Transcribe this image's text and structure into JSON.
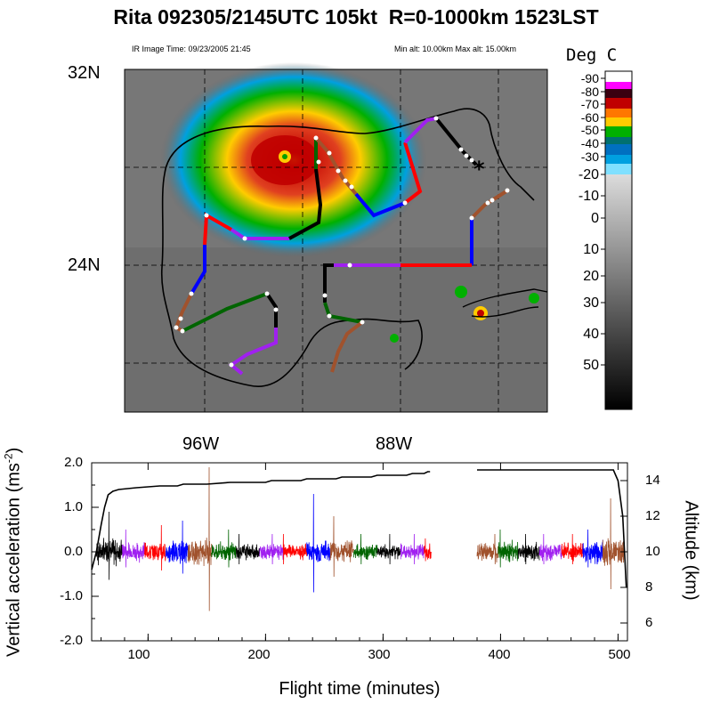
{
  "header": {
    "title": "Rita 092305/2145UTC 105kt  R=0-1000km 1523LST",
    "ir_time": "IR Image Time: 09/23/2005 21:45",
    "alt_range": "Min alt: 10.00km  Max alt: 15.00km"
  },
  "map": {
    "lat_labels": [
      "32N",
      "24N"
    ],
    "lon_labels": [
      "96W",
      "88W"
    ],
    "colorbar_title": "Deg C",
    "colorbar_ticks": [
      "-90",
      "-80",
      "-70",
      "-60",
      "-50",
      "-40",
      "-30",
      "-20",
      "-10",
      "0",
      "10",
      "20",
      "30",
      "40",
      "50"
    ],
    "colorbar_colors": {
      "-90": "#ff00ff",
      "-80": "#3a0010",
      "-70": "#c00000",
      "-60": "#ffcc00",
      "-50": "#00b000",
      "-40": "#0070c0",
      "-30": "#40e0ff"
    },
    "storm_marker": "*"
  },
  "chart_data": {
    "type": "line",
    "xlabel": "Flight time (minutes)",
    "ylabel_left": "Vertical acceleration (ms^-2)",
    "ylabel_right": "Altitude (km)",
    "xlim": [
      52,
      508
    ],
    "ylim_left": [
      -2.0,
      2.0
    ],
    "ylim_right": [
      5,
      15
    ],
    "x_ticks": [
      100,
      200,
      300,
      400,
      500
    ],
    "y_ticks_left": [
      "2.0",
      "1.0",
      "0.0",
      "-1.0",
      "-2.0"
    ],
    "y_ticks_right": [
      "6",
      "8",
      "10",
      "12",
      "14"
    ],
    "altitude_series": {
      "name": "Altitude",
      "x": [
        52,
        56,
        60,
        63,
        66,
        70,
        75,
        90,
        110,
        125,
        130,
        140,
        150,
        170,
        200,
        205,
        230,
        235,
        260,
        265,
        290,
        295,
        320,
        325,
        335,
        338,
        340,
        380,
        400,
        420,
        440,
        460,
        480,
        496,
        500,
        504,
        507
      ],
      "y": [
        9.0,
        10.0,
        11.5,
        12.5,
        13.2,
        13.4,
        13.5,
        13.6,
        13.7,
        13.7,
        13.8,
        13.8,
        13.8,
        13.9,
        13.9,
        14.0,
        14.0,
        14.1,
        14.1,
        14.2,
        14.2,
        14.3,
        14.3,
        14.4,
        14.4,
        14.5,
        14.5,
        14.6,
        14.6,
        14.6,
        14.6,
        14.6,
        14.6,
        14.6,
        14.0,
        12.0,
        8.0
      ]
    },
    "acceleration_segments": [
      {
        "color": "#000000",
        "x0": 56,
        "x1": 78,
        "amp": 0.35,
        "peak": 0.9
      },
      {
        "color": "#a020f0",
        "x0": 78,
        "x1": 97,
        "amp": 0.25,
        "peak": 0.5
      },
      {
        "color": "#ff0000",
        "x0": 97,
        "x1": 115,
        "amp": 0.25,
        "peak": 0.6
      },
      {
        "color": "#0000ff",
        "x0": 115,
        "x1": 134,
        "amp": 0.3,
        "peak": 0.7
      },
      {
        "color": "#a0522d",
        "x0": 134,
        "x1": 154,
        "amp": 0.35,
        "peak": 1.9
      },
      {
        "color": "#006400",
        "x0": 154,
        "x1": 175,
        "amp": 0.25,
        "peak": 0.5
      },
      {
        "color": "#000000",
        "x0": 175,
        "x1": 195,
        "amp": 0.2,
        "peak": 0.4
      },
      {
        "color": "#a020f0",
        "x0": 195,
        "x1": 215,
        "amp": 0.2,
        "peak": 0.4
      },
      {
        "color": "#ff0000",
        "x0": 215,
        "x1": 235,
        "amp": 0.2,
        "peak": 0.4
      },
      {
        "color": "#0000ff",
        "x0": 235,
        "x1": 255,
        "amp": 0.3,
        "peak": 1.3
      },
      {
        "color": "#a0522d",
        "x0": 255,
        "x1": 275,
        "amp": 0.3,
        "peak": 0.8
      },
      {
        "color": "#006400",
        "x0": 275,
        "x1": 295,
        "amp": 0.2,
        "peak": 0.4
      },
      {
        "color": "#000000",
        "x0": 295,
        "x1": 315,
        "amp": 0.2,
        "peak": 0.4
      },
      {
        "color": "#a020f0",
        "x0": 315,
        "x1": 335,
        "amp": 0.2,
        "peak": 0.4
      },
      {
        "color": "#ff0000",
        "x0": 335,
        "x1": 341,
        "amp": 0.2,
        "peak": 0.3
      },
      {
        "color": "#a0522d",
        "x0": 380,
        "x1": 398,
        "amp": 0.25,
        "peak": 0.4
      },
      {
        "color": "#006400",
        "x0": 398,
        "x1": 415,
        "amp": 0.3,
        "peak": 0.5
      },
      {
        "color": "#000000",
        "x0": 415,
        "x1": 433,
        "amp": 0.25,
        "peak": 0.4
      },
      {
        "color": "#a020f0",
        "x0": 433,
        "x1": 452,
        "amp": 0.25,
        "peak": 0.4
      },
      {
        "color": "#ff0000",
        "x0": 452,
        "x1": 470,
        "amp": 0.25,
        "peak": 0.4
      },
      {
        "color": "#0000ff",
        "x0": 470,
        "x1": 487,
        "amp": 0.3,
        "peak": 0.5
      },
      {
        "color": "#a0522d",
        "x0": 487,
        "x1": 505,
        "amp": 0.35,
        "peak": 1.2
      }
    ]
  }
}
